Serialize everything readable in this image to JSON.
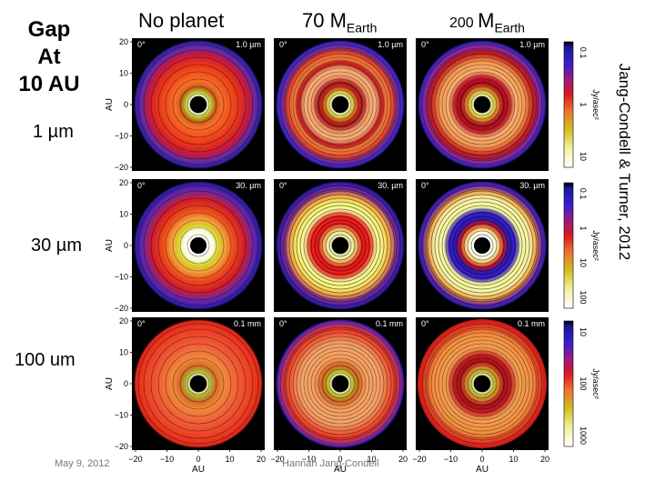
{
  "slide": {
    "title_lines": [
      "Gap",
      "At",
      "10 AU"
    ],
    "row_labels": [
      "1 µm",
      "30 µm",
      "100 um"
    ],
    "column_labels": [
      {
        "main": "No planet",
        "sub": ""
      },
      {
        "main": "70 M",
        "sub": "Earth"
      },
      {
        "main": "M",
        "prefix": "200 ",
        "sub": "Earth"
      }
    ],
    "citation": "Jang-Condell & Turner, 2012",
    "footer_date": "May 9, 2012",
    "footer_author": "Hannah Jang-Condell"
  },
  "figure": {
    "panel_angle": "0°",
    "wavelength_tags": [
      "1.0 µm",
      "30. µm",
      "0.1 mm"
    ],
    "y_ticks": [
      "20",
      "10",
      "0",
      "−10",
      "−20"
    ],
    "x_ticks": [
      "−20",
      "−10",
      "0",
      "10",
      "20"
    ],
    "axis_label": "AU",
    "colorbar_label": "Jy/asec²",
    "colorbars": [
      {
        "ticks": [
          "0.1",
          "1",
          "10"
        ]
      },
      {
        "ticks": [
          "0.1",
          "1",
          "10",
          "100"
        ]
      },
      {
        "ticks": [
          "10",
          "100",
          "1000"
        ]
      }
    ]
  }
}
